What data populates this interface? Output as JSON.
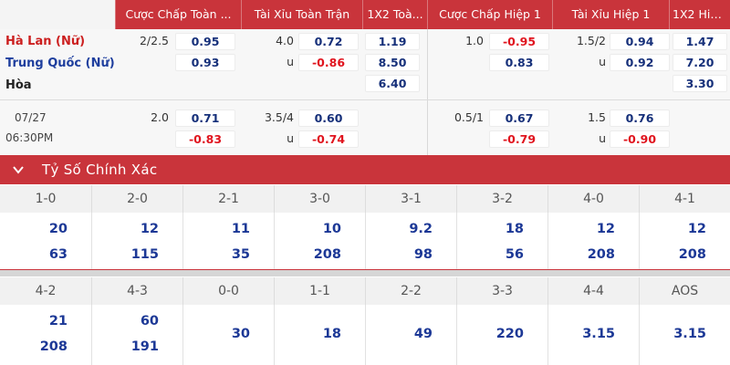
{
  "header": {
    "columns": [
      "Cược Chấp Toàn ...",
      "Tài Xỉu Toàn Trận",
      "1X2 Toà...",
      "Cược Chấp Hiệp 1",
      "Tài Xỉu Hiệp 1",
      "1X2 Hiệ..."
    ]
  },
  "match": {
    "home": "Hà Lan (Nữ)",
    "away": "Trung Quốc (Nữ)",
    "draw": "Hòa",
    "date": "07/27",
    "time": "06:30PM",
    "main": {
      "hdp_line": "2/2.5",
      "hdp_home": "0.95",
      "hdp_away": "0.93",
      "ou_line": "4.0",
      "ou_over": "0.72",
      "ou_u": "u",
      "ou_under": "-0.86",
      "x12_home": "1.19",
      "x12_away": "8.50",
      "x12_draw": "6.40",
      "h1_hdp_line": "1.0",
      "h1_hdp_home": "-0.95",
      "h1_hdp_away": "0.83",
      "h1_ou_line": "1.5/2",
      "h1_ou_over": "0.94",
      "h1_ou_u": "u",
      "h1_ou_under": "0.92",
      "h1_x12_home": "1.47",
      "h1_x12_away": "7.20",
      "h1_x12_draw": "3.30"
    },
    "alt": {
      "hdp_line": "2.0",
      "hdp_home": "0.71",
      "hdp_away": "-0.83",
      "ou_line": "3.5/4",
      "ou_over": "0.60",
      "ou_u": "u",
      "ou_under": "-0.74",
      "h1_hdp_line": "0.5/1",
      "h1_hdp_home": "0.67",
      "h1_hdp_away": "-0.79",
      "h1_ou_line": "1.5",
      "h1_ou_over": "0.76",
      "h1_ou_u": "u",
      "h1_ou_under": "-0.90"
    }
  },
  "correct_score": {
    "title": "Tỷ Số Chính Xác",
    "row1": {
      "scores": [
        "1-0",
        "2-0",
        "2-1",
        "3-0",
        "3-1",
        "3-2",
        "4-0",
        "4-1"
      ],
      "top": [
        "20",
        "12",
        "11",
        "10",
        "9.2",
        "18",
        "12",
        "12"
      ],
      "bottom": [
        "63",
        "115",
        "35",
        "208",
        "98",
        "56",
        "208",
        "208"
      ]
    },
    "row2": {
      "scores": [
        "4-2",
        "4-3",
        "0-0",
        "1-1",
        "2-2",
        "3-3",
        "4-4",
        "AOS"
      ],
      "top": [
        "21",
        "60",
        "",
        "",
        "",
        "",
        "",
        ""
      ],
      "bottom": [
        "208",
        "191",
        "",
        "",
        "",
        "",
        "",
        ""
      ],
      "single": [
        "",
        "",
        "30",
        "18",
        "49",
        "220",
        "3.15",
        ""
      ]
    },
    "row2_aos": "3.15"
  },
  "colors": {
    "accent_red": "#c9343b",
    "odds_blue": "#16307a",
    "odds_negative": "#e0141e"
  }
}
